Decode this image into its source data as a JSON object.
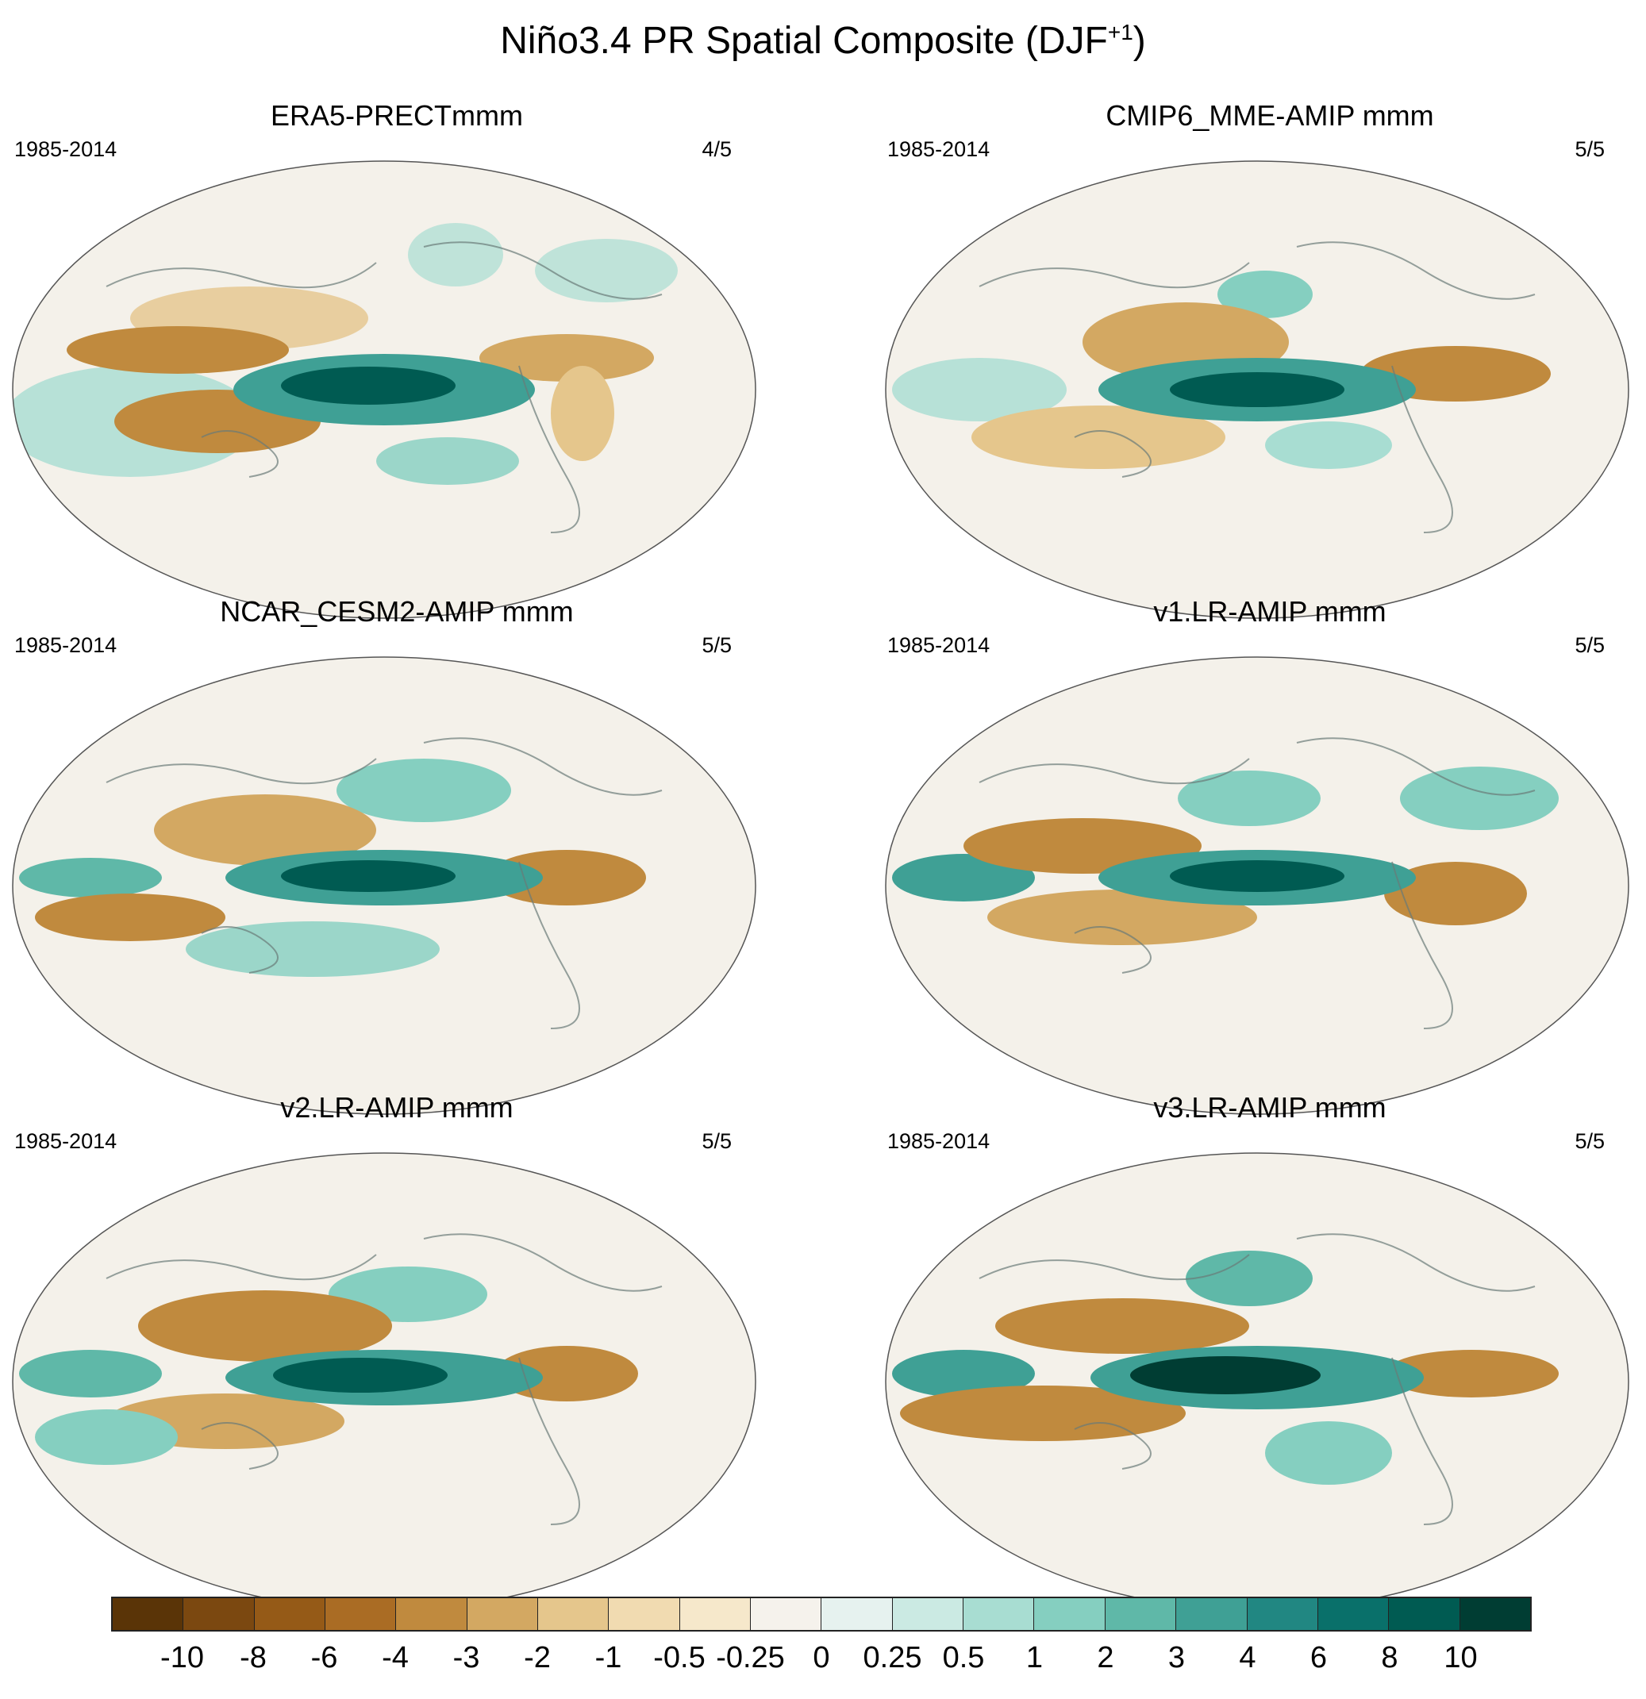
{
  "title": {
    "main": "Niño3.4 PR Spatial Composite (DJF",
    "sup": "+1",
    "close": ")"
  },
  "panels": [
    {
      "title": "ERA5-PRECTmmm",
      "period": "1985-2014",
      "count": "4/5"
    },
    {
      "title": "CMIP6_MME-AMIP  mmm",
      "period": "1985-2014",
      "count": "5/5"
    },
    {
      "title": "NCAR_CESM2-AMIP  mmm",
      "period": "1985-2014",
      "count": "5/5"
    },
    {
      "title": "v1.LR-AMIP  mmm",
      "period": "1985-2014",
      "count": "5/5"
    },
    {
      "title": "v2.LR-AMIP  mmm",
      "period": "1985-2014",
      "count": "5/5"
    },
    {
      "title": "v3.LR-AMIP  mmm",
      "period": "1985-2014",
      "count": "5/5"
    }
  ],
  "colorbar": {
    "colors": [
      "#5a3407",
      "#7b4810",
      "#955a17",
      "#aa6c24",
      "#c08a3e",
      "#d3a862",
      "#e5c68c",
      "#f1dbb1",
      "#f6e8cb",
      "#f5f2ec",
      "#e6f2ef",
      "#cbeae3",
      "#a8ddd2",
      "#85cfc0",
      "#5fb8a8",
      "#3fa095",
      "#218782",
      "#09706a",
      "#005b52",
      "#003d33"
    ],
    "labels": [
      "-10",
      "-8",
      "-6",
      "-4",
      "-3",
      "-2",
      "-1",
      "-0.5",
      "-0.25",
      "0",
      "0.25",
      "0.5",
      "1",
      "2",
      "3",
      "4",
      "6",
      "8",
      "10"
    ]
  }
}
